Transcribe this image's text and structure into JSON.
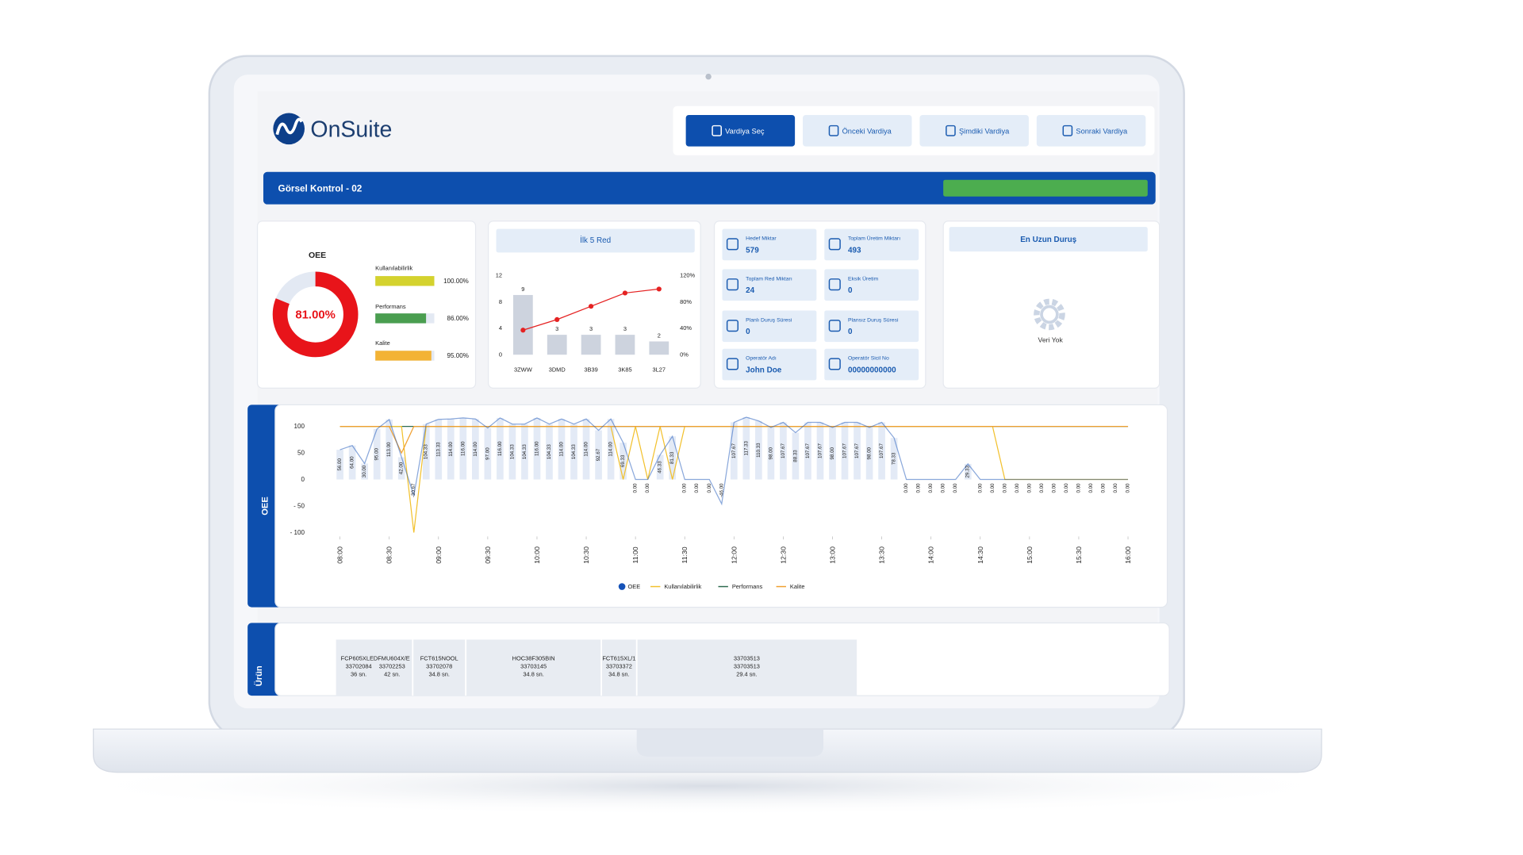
{
  "header": {
    "brand": "OnSuite",
    "buttons": [
      "Vardiya Seç",
      "Önceki Vardiya",
      "Şimdiki Vardiya",
      "Sonraki Vardiya"
    ]
  },
  "station": {
    "title": "Görsel Kontrol - 02"
  },
  "oee_card": {
    "title": "OEE",
    "value": 81,
    "value_label": "81.00%",
    "color": "#e8141a",
    "metrics": [
      {
        "name": "Kullanılabilirlik",
        "value": 100,
        "label": "100.00%",
        "color": "#d4d22e"
      },
      {
        "name": "Performans",
        "value": 86,
        "label": "86.00%",
        "color": "#4a9e50"
      },
      {
        "name": "Kalite",
        "value": 95,
        "label": "95.00%",
        "color": "#f3b335"
      }
    ]
  },
  "stats": [
    {
      "label": "Hedef Miktar",
      "value": 579
    },
    {
      "label": "Toplam Üretim Miktarı",
      "value": 493
    },
    {
      "label": "Toplam Red Miktarı",
      "value": 24
    },
    {
      "label": "Eksik Üretim",
      "value": 0
    },
    {
      "label": "Planlı Duruş Süresi",
      "value": 0
    },
    {
      "label": "Plansız Duruş Süresi",
      "value": 0
    },
    {
      "label": "Operatör Adı",
      "value": "John Doe"
    },
    {
      "label": "Operatör Sicil No",
      "value": "00000000000"
    }
  ],
  "downtime": {
    "title": "En Uzun Duruş",
    "empty": "Veri Yok"
  },
  "chart_data": [
    {
      "type": "bar",
      "title": "İlk 5 Red",
      "categories": [
        "3ZWW",
        "3DMD",
        "3B39",
        "3K85",
        "3L27"
      ],
      "series": [
        {
          "type": "bar",
          "values": [
            9,
            3,
            3,
            3,
            2
          ],
          "color": "#cdd3de"
        },
        {
          "type": "line",
          "axis": "y2",
          "values": [
            37,
            53,
            73,
            93,
            99
          ],
          "color": "#e52222"
        }
      ],
      "ylim": [
        0,
        12
      ],
      "yticks": [
        0,
        4,
        8,
        12
      ],
      "y2lim": [
        0,
        120
      ],
      "y2ticks": [
        {
          "value": 0,
          "label": "0%"
        },
        {
          "value": 40,
          "label": "40%"
        },
        {
          "value": 80,
          "label": "80%"
        },
        {
          "value": 120,
          "label": "120%"
        }
      ]
    },
    {
      "type": "line",
      "title": "OEE",
      "x": [
        480,
        487.5,
        495,
        502.5,
        510,
        517.5,
        525,
        532.5,
        540,
        547.5,
        555,
        562.5,
        570,
        577.5,
        585,
        592.5,
        600,
        607.5,
        615,
        622.5,
        630,
        637.5,
        645,
        652.5,
        660,
        667.5,
        675,
        682.5,
        690,
        697.5,
        705,
        712.5,
        720,
        727.5,
        735,
        742.5,
        750,
        757.5,
        765,
        772.5,
        780,
        787.5,
        795,
        802.5,
        810,
        817.5,
        825,
        832.5,
        840,
        847.5,
        855,
        862.5,
        870,
        877.5,
        885,
        892.5,
        900,
        907.5,
        915,
        922.5,
        930,
        937.5,
        945,
        952.5,
        960
      ],
      "xlim": [
        480,
        960
      ],
      "xticks": [
        {
          "value": 480,
          "label": "08:00"
        },
        {
          "value": 510,
          "label": "08:30"
        },
        {
          "value": 540,
          "label": "09:00"
        },
        {
          "value": 570,
          "label": "09:30"
        },
        {
          "value": 600,
          "label": "10:00"
        },
        {
          "value": 630,
          "label": "10:30"
        },
        {
          "value": 660,
          "label": "11:00"
        },
        {
          "value": 690,
          "label": "11:30"
        },
        {
          "value": 720,
          "label": "12:00"
        },
        {
          "value": 750,
          "label": "12:30"
        },
        {
          "value": 780,
          "label": "13:00"
        },
        {
          "value": 810,
          "label": "13:30"
        },
        {
          "value": 840,
          "label": "14:00"
        },
        {
          "value": 870,
          "label": "14:30"
        },
        {
          "value": 900,
          "label": "15:00"
        },
        {
          "value": 930,
          "label": "15:30"
        },
        {
          "value": 960,
          "label": "16:00"
        }
      ],
      "ylim": [
        -100,
        130
      ],
      "yticks": [
        100,
        50,
        0,
        {
          "value": -50,
          "label": "- 50"
        },
        {
          "value": -100,
          "label": "- 100"
        }
      ],
      "series": [
        {
          "name": "OEE",
          "color": "#1552b8",
          "values": [
            56,
            64,
            30,
            95,
            113,
            42,
            -30.67,
            104.33,
            113.33,
            114,
            116,
            114,
            97,
            116,
            104.33,
            104.33,
            116,
            104.33,
            114,
            104.33,
            114,
            92.67,
            114,
            69.33,
            0,
            0,
            46.33,
            81.33,
            0,
            0,
            0,
            -46,
            107.67,
            117.33,
            110.33,
            98,
            107.67,
            88.33,
            107.67,
            107.67,
            98,
            107.67,
            107.67,
            98,
            107.67,
            78.33,
            0,
            0,
            0,
            0,
            0,
            29.33,
            0,
            0,
            0,
            0,
            0,
            0,
            0,
            0,
            0,
            0,
            0,
            0,
            0
          ],
          "value_labels": [
            "56.00",
            "64.00",
            "30.00",
            "95.00",
            "113.00",
            "42.00",
            "-30.67",
            "104.33",
            "113.33",
            "114.00",
            "116.00",
            "114.00",
            "97.00",
            "116.00",
            "104.33",
            "104.33",
            "116.00",
            "104.33",
            "114.00",
            "104.33",
            "114.00",
            "92.67",
            "114.00",
            "69.33",
            "0.00",
            "0.00",
            "46.33",
            "81.33",
            "0.00",
            "0.00",
            "0.00",
            "-46.00",
            "107.67",
            "117.33",
            "110.33",
            "98.00",
            "107.67",
            "88.33",
            "107.67",
            "107.67",
            "98.00",
            "107.67",
            "107.67",
            "98.00",
            "107.67",
            "78.33",
            "0.00",
            "0.00",
            "0.00",
            "0.00",
            "0.00",
            "29.33",
            "0.00",
            "0.00",
            "0.00",
            "0.00",
            "0.00",
            "0.00",
            "0.00",
            "0.00",
            "0.00",
            "0.00",
            "0.00",
            "0.00",
            "0.00"
          ]
        },
        {
          "name": "Kullanılabilirlik",
          "color": "#f2c12e",
          "values": [
            100,
            100,
            100,
            100,
            100,
            100,
            -100,
            100,
            100,
            100,
            100,
            100,
            100,
            100,
            100,
            100,
            100,
            100,
            100,
            100,
            100,
            100,
            100,
            0,
            100,
            0,
            100,
            0,
            100,
            100,
            100,
            100,
            100,
            100,
            100,
            100,
            100,
            100,
            100,
            100,
            100,
            100,
            100,
            100,
            100,
            100,
            100,
            100,
            100,
            100,
            100,
            100,
            100,
            100,
            0,
            0,
            0,
            0,
            0,
            0,
            0,
            0,
            0,
            0,
            0
          ]
        },
        {
          "name": "Performans",
          "color": "#2e6b4f",
          "values": [
            100,
            100,
            100,
            100,
            100,
            100,
            100,
            100,
            100,
            100,
            100,
            100,
            100,
            100,
            100,
            100,
            100,
            100,
            100,
            100,
            100,
            100,
            100,
            100,
            100,
            100,
            100,
            100,
            100,
            100,
            100,
            100,
            100,
            100,
            100,
            100,
            100,
            100,
            100,
            100,
            100,
            100,
            100,
            100,
            100,
            100,
            100,
            100,
            100,
            100,
            100,
            100,
            100,
            100,
            100,
            100,
            100,
            100,
            100,
            100,
            100,
            100,
            100,
            100,
            100
          ]
        },
        {
          "name": "Kalite",
          "color": "#f0a030",
          "values": [
            100,
            100,
            100,
            100,
            100,
            50,
            100,
            100,
            100,
            100,
            100,
            100,
            100,
            100,
            100,
            100,
            100,
            100,
            100,
            100,
            100,
            100,
            100,
            100,
            100,
            100,
            100,
            100,
            100,
            100,
            100,
            100,
            100,
            100,
            100,
            100,
            100,
            100,
            100,
            100,
            100,
            100,
            100,
            100,
            100,
            100,
            100,
            100,
            100,
            100,
            100,
            100,
            100,
            100,
            100,
            100,
            100,
            100,
            100,
            100,
            100,
            100,
            100,
            100,
            100
          ]
        }
      ]
    }
  ],
  "products": {
    "title": "Ürün",
    "items": [
      {
        "name": "FCP605XLEDFMU604X/E",
        "codes": [
          "33702084",
          "33702253"
        ],
        "times": [
          "36 sn.",
          "42 sn."
        ]
      },
      {
        "name": "FCT615NOOL",
        "codes": [
          "33702078"
        ],
        "times": [
          "34.8 sn."
        ]
      },
      {
        "name": "HOC38F305BIN",
        "codes": [
          "33703145"
        ],
        "times": [
          "34.8 sn."
        ]
      },
      {
        "name": "FCT615XL/1",
        "codes": [
          "33703372"
        ],
        "times": [
          "34.8 sn."
        ]
      },
      {
        "name": "33703513",
        "codes": [
          "33703513"
        ],
        "times": [
          "29.4 sn."
        ]
      }
    ]
  }
}
